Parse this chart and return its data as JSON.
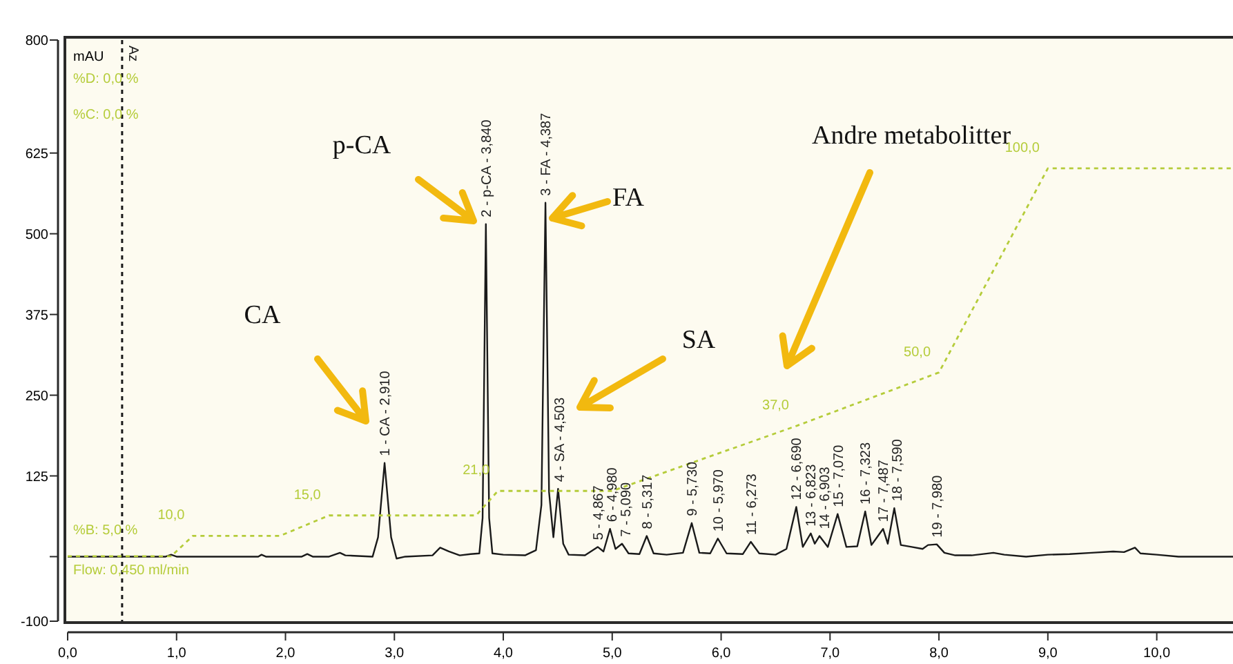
{
  "chart_data": {
    "type": "line",
    "ylabel": "mAU",
    "xlim": [
      0,
      10.7
    ],
    "xticks": [
      {
        "value": 0,
        "label": "0,0"
      },
      {
        "value": 1,
        "label": "1,0"
      },
      {
        "value": 2,
        "label": "2,0"
      },
      {
        "value": 3,
        "label": "3,0"
      },
      {
        "value": 4,
        "label": "4,0"
      },
      {
        "value": 5,
        "label": "5,0"
      },
      {
        "value": 6,
        "label": "6,0"
      },
      {
        "value": 7,
        "label": "7,0"
      },
      {
        "value": 8,
        "label": "8,0"
      },
      {
        "value": 9,
        "label": "9,0"
      },
      {
        "value": 10,
        "label": "10,0"
      }
    ],
    "ylim": [
      -100,
      800
    ],
    "yticks": [
      -100,
      {
        "value": 0,
        "label": null
      },
      125,
      250,
      375,
      500,
      625,
      800
    ],
    "y2lim": [
      -10.9,
      131.4
    ],
    "grid": false,
    "marker": "none",
    "series": [
      {
        "color": "#1a1a1a",
        "x": [
          0,
          0.9,
          0.95,
          1,
          1.75,
          1.78,
          1.82,
          2.15,
          2.2,
          2.25,
          2.4,
          2.45,
          2.5,
          2.55,
          2.8,
          2.85,
          2.91,
          2.97,
          3.02,
          3.1,
          3.35,
          3.42,
          3.5,
          3.6,
          3.7,
          3.78,
          3.81,
          3.84,
          3.87,
          3.9,
          4,
          4.2,
          4.3,
          4.35,
          4.387,
          4.42,
          4.46,
          4.503,
          4.55,
          4.6,
          4.75,
          4.867,
          4.92,
          4.98,
          5.03,
          5.09,
          5.15,
          5.25,
          5.317,
          5.38,
          5.5,
          5.65,
          5.73,
          5.8,
          5.9,
          5.97,
          6.05,
          6.2,
          6.273,
          6.35,
          6.5,
          6.6,
          6.69,
          6.75,
          6.823,
          6.86,
          6.903,
          6.98,
          7.07,
          7.15,
          7.25,
          7.323,
          7.38,
          7.487,
          7.53,
          7.59,
          7.65,
          7.75,
          7.85,
          7.9,
          7.98,
          8.05,
          8.15,
          8.3,
          8.5,
          8.6,
          8.8,
          9,
          9.2,
          9.4,
          9.6,
          9.7,
          9.8,
          9.85,
          10,
          10.2,
          10.7
        ],
        "values": [
          0,
          0,
          3,
          0,
          0,
          3,
          0,
          0,
          4,
          0,
          0,
          3,
          6,
          2,
          0,
          30,
          145,
          30,
          -3,
          0,
          2,
          14,
          8,
          2,
          4,
          5,
          60,
          515,
          60,
          5,
          3,
          2,
          10,
          80,
          548,
          100,
          30,
          105,
          20,
          3,
          2,
          15,
          8,
          43,
          12,
          20,
          5,
          4,
          32,
          5,
          3,
          6,
          52,
          6,
          5,
          28,
          5,
          4,
          23,
          5,
          3,
          12,
          77,
          15,
          36,
          20,
          32,
          15,
          66,
          15,
          16,
          70,
          18,
          43,
          20,
          75,
          18,
          15,
          12,
          18,
          19,
          6,
          2,
          2,
          6,
          3,
          0,
          3,
          4,
          6,
          8,
          7,
          14,
          5,
          3,
          0,
          0
        ]
      },
      {
        "color": "#b5cc3a",
        "axis": "y2",
        "line_style": "dotted",
        "x": [
          0,
          0.95,
          1.15,
          1.95,
          2.4,
          3.75,
          3.95,
          5,
          6.7,
          8,
          9,
          10.7
        ],
        "values": [
          5,
          5,
          10,
          10,
          15,
          15,
          21,
          21,
          37,
          50,
          100,
          100
        ],
        "value_labels": [
          null,
          null,
          "10,0",
          null,
          "15,0",
          null,
          "21,0",
          null,
          "37,0",
          "50,0",
          "100,0",
          null
        ]
      }
    ],
    "ref_lines": [
      {
        "axis": "x",
        "value": 0.5,
        "label": "Az",
        "color": "#1a1a1a",
        "line_style": "dotted"
      }
    ],
    "annotations": [
      "%D: 0,0 %",
      "%C: 0,0 %",
      "%B: 5,0 %",
      "Flow: 0,450 ml/min",
      "CA",
      "p-CA",
      "FA",
      "SA",
      "Andre metabolitter",
      {
        "text": "1 - CA - 2,910",
        "x": 2.91,
        "y": 145
      },
      {
        "text": "2 - p-CA - 3,840",
        "x": 3.84,
        "y": 515
      },
      {
        "text": "3 - FA - 4,387",
        "x": 4.387,
        "y": 548
      },
      {
        "text": "4 - SA - 4,503",
        "x": 4.503,
        "y": 105
      },
      {
        "text": "5 - 4,867",
        "x": 4.867,
        "y": 15
      },
      {
        "text": "6 - 4,980",
        "x": 4.98,
        "y": 43
      },
      {
        "text": "7 - 5,090",
        "x": 5.09,
        "y": 20
      },
      {
        "text": "8 - 5,317",
        "x": 5.317,
        "y": 32
      },
      {
        "text": "9 - 5,730",
        "x": 5.73,
        "y": 52
      },
      {
        "text": "10 - 5,970",
        "x": 5.97,
        "y": 28
      },
      {
        "text": "11 - 6,273",
        "x": 6.273,
        "y": 23
      },
      {
        "text": "12 - 6,690",
        "x": 6.69,
        "y": 77
      },
      {
        "text": "13 - 6,823",
        "x": 6.823,
        "y": 36
      },
      {
        "text": "14 - 6,903",
        "x": 6.903,
        "y": 32
      },
      {
        "text": "15 - 7,070",
        "x": 7.07,
        "y": 66
      },
      {
        "text": "16 - 7,323",
        "x": 7.323,
        "y": 70
      },
      {
        "text": "17 - 7,487",
        "x": 7.487,
        "y": 43
      },
      {
        "text": "18 - 7,590",
        "x": 7.59,
        "y": 75
      },
      {
        "text": "19 - 7,980",
        "x": 7.98,
        "y": 19
      }
    ]
  }
}
